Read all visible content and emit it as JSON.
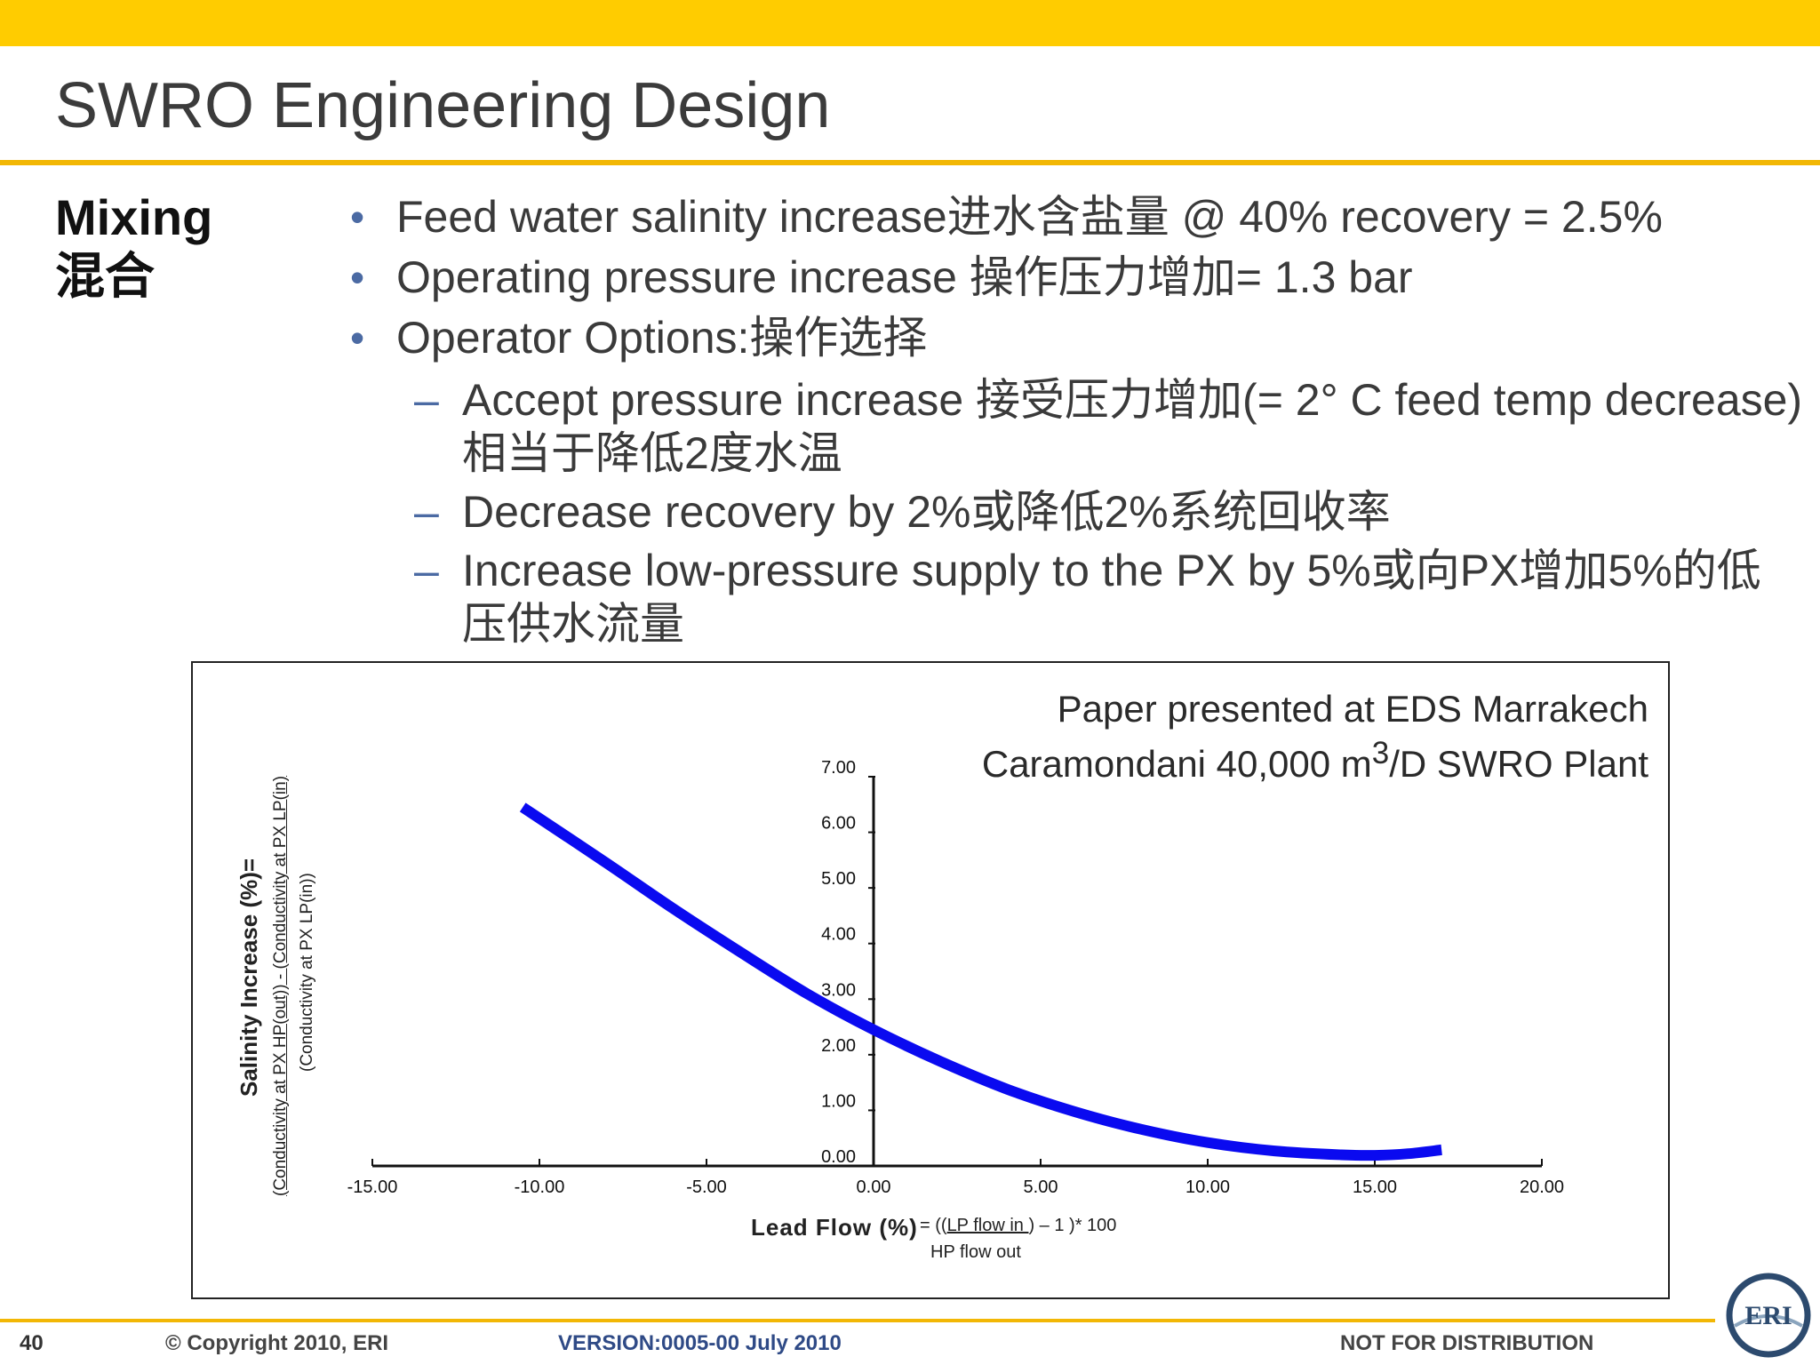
{
  "slide": {
    "title": "SWRO Engineering Design",
    "section_en": "Mixing",
    "section_zh": "混合",
    "bullets": [
      "Feed water salinity increase进水含盐量 @ 40% recovery = 2.5%",
      "Operating pressure increase 操作压力增加= 1.3 bar",
      "Operator Options:操作选择"
    ],
    "sub_bullets": [
      "Accept pressure increase 接受压力增加(= 2°  C feed temp decrease)相当于降低2度水温",
      "Decrease recovery by 2%或降低2%系统回收率",
      "Increase low-pressure supply to the PX by 5%或向PX增加5%的低压供水流量"
    ],
    "bullet_char": "•",
    "dash_char": "–"
  },
  "chart_text": {
    "source_line1": "Paper presented at EDS Marrakech",
    "source_line2_a": "Caramondani 40,000 m",
    "source_line2_sup": "3",
    "source_line2_b": "/D SWRO Plant",
    "ylabel": "Salinity Increase (%)=",
    "ylabel_numerator": "(Conductivity at PX HP(out)) - (Conductivity at PX LP(in)",
    "ylabel_denominator": "(Conductivity at PX LP(in))",
    "xlabel": "Lead Flow (%)",
    "xlabel_formula_a": "= ((",
    "xlabel_formula_num": "LP flow  in  ",
    "xlabel_formula_b": ") – 1 )* 100",
    "xlabel_formula_den": "HP flow  out"
  },
  "chart_data": {
    "type": "line",
    "x": [
      -10.5,
      -8,
      -6,
      -4,
      -2,
      0,
      2,
      4,
      6,
      8,
      10,
      12,
      14,
      15,
      16,
      17
    ],
    "y": [
      6.45,
      5.45,
      4.63,
      3.85,
      3.1,
      2.45,
      1.88,
      1.38,
      0.98,
      0.66,
      0.42,
      0.27,
      0.2,
      0.19,
      0.22,
      0.29
    ],
    "xlim": [
      -15,
      20
    ],
    "ylim": [
      0,
      7
    ],
    "xticks": [
      "-15.00",
      "-10.00",
      "-5.00",
      "0.00",
      "5.00",
      "10.00",
      "15.00",
      "20.00"
    ],
    "yticks": [
      "0.00",
      "1.00",
      "2.00",
      "3.00",
      "4.00",
      "5.00",
      "6.00",
      "7.00"
    ],
    "line_color": "#0A0AF0",
    "grid": false,
    "legend": "none"
  },
  "footer": {
    "page": "40",
    "copyright": "© Copyright 2010, ERI",
    "version": "VERSION:0005-00 July 2010",
    "distribution": "NOT FOR DISTRIBUTION",
    "logo_text": "ERI"
  },
  "colors": {
    "top_bar": "#FFCC00",
    "rule": "#F2B705",
    "bullet": "#4b6aa3"
  }
}
